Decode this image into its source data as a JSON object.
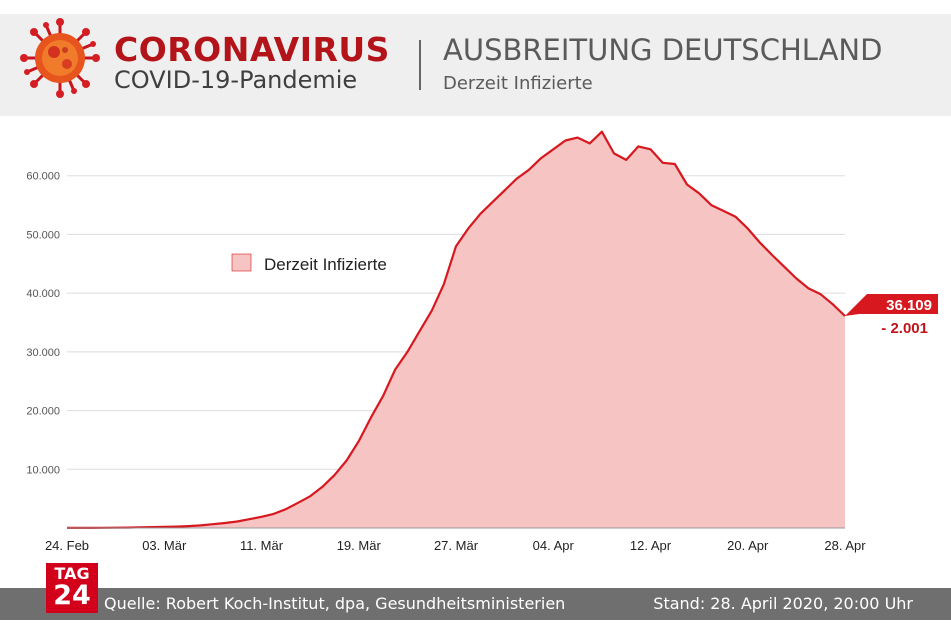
{
  "header": {
    "brand_title": "CORONAVIRUS",
    "brand_subtitle": "COVID-19-Pandemie",
    "topic_title": "AUSBREITUNG DEUTSCHLAND",
    "topic_subtitle": "Derzeit Infizierte"
  },
  "colors": {
    "brand_red": "#b3141a",
    "line": "#d7181f",
    "area": "#f5c4c3"
  },
  "chart_data": {
    "type": "area",
    "x": [
      "24. Feb",
      "25. Feb",
      "26. Feb",
      "27. Feb",
      "28. Feb",
      "29. Feb",
      "01. Mär",
      "02. Mär",
      "03. Mär",
      "04. Mär",
      "05. Mär",
      "06. Mär",
      "07. Mär",
      "08. Mär",
      "09. Mär",
      "10. Mär",
      "11. Mär",
      "12. Mär",
      "13. Mär",
      "14. Mär",
      "15. Mär",
      "16. Mär",
      "17. Mär",
      "18. Mär",
      "19. Mär",
      "20. Mär",
      "21. Mär",
      "22. Mär",
      "23. Mär",
      "24. Mär",
      "25. Mär",
      "26. Mär",
      "27. Mär",
      "28. Mär",
      "29. Mär",
      "30. Mär",
      "31. Mär",
      "01. Apr",
      "02. Apr",
      "03. Apr",
      "04. Apr",
      "05. Apr",
      "06. Apr",
      "07. Apr",
      "08. Apr",
      "09. Apr",
      "10. Apr",
      "11. Apr",
      "12. Apr",
      "13. Apr",
      "14. Apr",
      "15. Apr",
      "16. Apr",
      "17. Apr",
      "18. Apr",
      "19. Apr",
      "20. Apr",
      "21. Apr",
      "22. Apr",
      "23. Apr",
      "24. Apr",
      "25. Apr",
      "26. Apr",
      "27. Apr",
      "28. Apr"
    ],
    "series": [
      {
        "name": "Derzeit Infizierte",
        "values": [
          16,
          16,
          20,
          30,
          50,
          70,
          120,
          150,
          180,
          230,
          320,
          450,
          650,
          850,
          1100,
          1500,
          1900,
          2400,
          3200,
          4300,
          5400,
          7000,
          9000,
          11500,
          14800,
          18800,
          22500,
          27000,
          30000,
          33500,
          37000,
          41500,
          48000,
          51000,
          53500,
          55500,
          57500,
          59500,
          61000,
          63000,
          64500,
          66000,
          66500,
          65500,
          67500,
          63800,
          62700,
          65000,
          64500,
          62200,
          62000,
          58500,
          57000,
          55000,
          54000,
          53000,
          51000,
          48600,
          46500,
          44500,
          42500,
          40800,
          39800,
          38100,
          36109
        ]
      }
    ],
    "xticks": [
      "24. Feb",
      "03. Mär",
      "11. Mär",
      "19. Mär",
      "27. Mär",
      "04. Apr",
      "12. Apr",
      "20. Apr",
      "28. Apr"
    ],
    "yticks": [
      "10.000",
      "20.000",
      "30.000",
      "40.000",
      "50.000",
      "60.000"
    ],
    "ylim": [
      0,
      70000
    ],
    "legend": "Derzeit Infizierte",
    "last_value_label": "36.109",
    "last_delta_label": "- 2.001"
  },
  "footer": {
    "logo_line1": "TAG",
    "logo_line2": "24",
    "source": "Quelle: Robert Koch-Institut, dpa, Gesundheitsministerien",
    "date": "Stand: 28. April 2020, 20:00 Uhr"
  }
}
